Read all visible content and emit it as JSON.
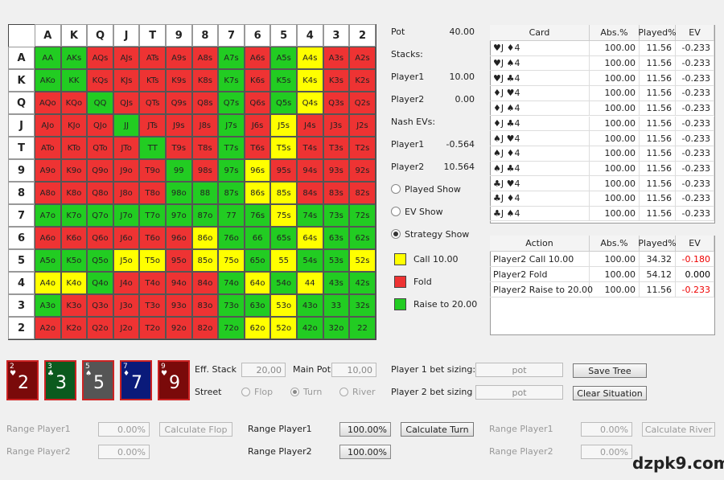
{
  "grid": {
    "columns": [
      "A",
      "K",
      "Q",
      "J",
      "T",
      "9",
      "8",
      "7",
      "6",
      "5",
      "4",
      "3",
      "2"
    ],
    "rows": [
      "A",
      "K",
      "Q",
      "J",
      "T",
      "9",
      "8",
      "7",
      "6",
      "5",
      "4",
      "3",
      "2"
    ],
    "cells": [
      [
        "AA",
        "AKs",
        "AQs",
        "AJs",
        "ATs",
        "A9s",
        "A8s",
        "A7s",
        "A6s",
        "A5s",
        "A4s",
        "A3s",
        "A2s"
      ],
      [
        "AKo",
        "KK",
        "KQs",
        "KJs",
        "KTs",
        "K9s",
        "K8s",
        "K7s",
        "K6s",
        "K5s",
        "K4s",
        "K3s",
        "K2s"
      ],
      [
        "AQo",
        "KQo",
        "QQ",
        "QJs",
        "QTs",
        "Q9s",
        "Q8s",
        "Q7s",
        "Q6s",
        "Q5s",
        "Q4s",
        "Q3s",
        "Q2s"
      ],
      [
        "AJo",
        "KJo",
        "QJo",
        "JJ",
        "JTs",
        "J9s",
        "J8s",
        "J7s",
        "J6s",
        "J5s",
        "J4s",
        "J3s",
        "J2s"
      ],
      [
        "ATo",
        "KTo",
        "QTo",
        "JTo",
        "TT",
        "T9s",
        "T8s",
        "T7s",
        "T6s",
        "T5s",
        "T4s",
        "T3s",
        "T2s"
      ],
      [
        "A9o",
        "K9o",
        "Q9o",
        "J9o",
        "T9o",
        "99",
        "98s",
        "97s",
        "96s",
        "95s",
        "94s",
        "93s",
        "92s"
      ],
      [
        "A8o",
        "K8o",
        "Q8o",
        "J8o",
        "T8o",
        "98o",
        "88",
        "87s",
        "86s",
        "85s",
        "84s",
        "83s",
        "82s"
      ],
      [
        "A7o",
        "K7o",
        "Q7o",
        "J7o",
        "T7o",
        "97o",
        "87o",
        "77",
        "76s",
        "75s",
        "74s",
        "73s",
        "72s"
      ],
      [
        "A6o",
        "K6o",
        "Q6o",
        "J6o",
        "T6o",
        "96o",
        "86o",
        "76o",
        "66",
        "65s",
        "64s",
        "63s",
        "62s"
      ],
      [
        "A5o",
        "K5o",
        "Q5o",
        "J5o",
        "T5o",
        "95o",
        "85o",
        "75o",
        "65o",
        "55",
        "54s",
        "53s",
        "52s"
      ],
      [
        "A4o",
        "K4o",
        "Q4o",
        "J4o",
        "T4o",
        "94o",
        "84o",
        "74o",
        "64o",
        "54o",
        "44",
        "43s",
        "42s"
      ],
      [
        "A3o",
        "K3o",
        "Q3o",
        "J3o",
        "T3o",
        "93o",
        "83o",
        "73o",
        "63o",
        "53o",
        "43o",
        "33",
        "32s"
      ],
      [
        "A2o",
        "K2o",
        "Q2o",
        "J2o",
        "T2o",
        "92o",
        "82o",
        "72o",
        "62o",
        "52o",
        "42o",
        "32o",
        "22"
      ]
    ],
    "colors": [
      [
        "#2c2",
        "#2c2",
        "#e33",
        "#e33",
        "#e33",
        "#e33",
        "#e33",
        "#2c2",
        "#e33",
        "#2c2",
        "#ff0",
        "#e33",
        "#e33"
      ],
      [
        "#2c2",
        "#2c2",
        "#e33",
        "#e33",
        "#e33",
        "#e33",
        "#e33",
        "#2c2",
        "#e33",
        "#2c2",
        "#ff0",
        "#e33",
        "#e33"
      ],
      [
        "#e33",
        "#e33",
        "#2c2",
        "#e33",
        "#e33",
        "#e33",
        "#e33",
        "#2c2",
        "#e33",
        "#2c2",
        "#ff0",
        "#e33",
        "#e33"
      ],
      [
        "#e33",
        "#e33",
        "#e33",
        "#2c2",
        "#e33",
        "#e33",
        "#e33",
        "#2c2",
        "#e33",
        "#ff0",
        "#e33",
        "#e33",
        "#e33"
      ],
      [
        "#e33",
        "#e33",
        "#e33",
        "#e33",
        "#2c2",
        "#e33",
        "#e33",
        "#2c2",
        "#e33",
        "#ff0",
        "#e33",
        "#e33",
        "#e33"
      ],
      [
        "#e33",
        "#e33",
        "#e33",
        "#e33",
        "#e33",
        "#2c2",
        "#e33",
        "#2c2",
        "#ff0",
        "#e33",
        "#e33",
        "#e33",
        "#e33"
      ],
      [
        "#e33",
        "#e33",
        "#e33",
        "#e33",
        "#e33",
        "#2c2",
        "#2c2",
        "#2c2",
        "#ff0",
        "#ff0",
        "#e33",
        "#e33",
        "#e33"
      ],
      [
        "#2c2",
        "#2c2",
        "#2c2",
        "#2c2",
        "#2c2",
        "#2c2",
        "#2c2",
        "#2c2",
        "#2c2",
        "#ff0",
        "#2c2",
        "#2c2",
        "#2c2"
      ],
      [
        "#e33",
        "#e33",
        "#e33",
        "#e33",
        "#e33",
        "#e33",
        "#ff0",
        "#2c2",
        "#2c2",
        "#2c2",
        "#ff0",
        "#2c2",
        "#2c2"
      ],
      [
        "#2c2",
        "#2c2",
        "#2c2",
        "#ff0",
        "#ff0",
        "#e33",
        "#ff0",
        "#ff0",
        "#2c2",
        "#ff0",
        "#2c2",
        "#2c2",
        "#ff0"
      ],
      [
        "#ff0",
        "#ff0",
        "#2c2",
        "#e33",
        "#e33",
        "#e33",
        "#e33",
        "#2c2",
        "#ff0",
        "#2c2",
        "#ff0",
        "#2c2",
        "#2c2"
      ],
      [
        "#2c2",
        "#e33",
        "#e33",
        "#e33",
        "#e33",
        "#e33",
        "#e33",
        "#2c2",
        "#2c2",
        "#ff0",
        "#2c2",
        "#2c2",
        "#2c2"
      ],
      [
        "#e33",
        "#e33",
        "#e33",
        "#e33",
        "#e33",
        "#e33",
        "#e33",
        "#2c2",
        "#ff0",
        "#ff0",
        "#2c2",
        "#2c2",
        "#2c2"
      ]
    ]
  },
  "info": [
    {
      "label": "Pot",
      "value": "40.00"
    },
    {
      "label": "Stacks:"
    },
    {
      "label": "Player1",
      "value": "10.00"
    },
    {
      "label": "Player2",
      "value": "0.00"
    },
    {
      "label": "Nash EVs:"
    },
    {
      "label": "Player1",
      "value": "-0.564"
    },
    {
      "label": "Player2",
      "value": "10.564"
    }
  ],
  "display_options": [
    {
      "label": "Played Show",
      "checked": false
    },
    {
      "label": "EV Show",
      "checked": false
    },
    {
      "label": "Strategy Show",
      "checked": true
    }
  ],
  "legend": [
    {
      "label": "Call 10.00",
      "color": "#ff0"
    },
    {
      "label": "Fold",
      "color": "#e33"
    },
    {
      "label": "Raise to 20.00",
      "color": "#2c2"
    }
  ],
  "card_table": {
    "headers": [
      "Card",
      "Abs.%",
      "Played%",
      "EV"
    ],
    "rows": [
      [
        "♥J ♦4",
        "100.00",
        "11.56",
        "-0.233"
      ],
      [
        "♥J ♠4",
        "100.00",
        "11.56",
        "-0.233"
      ],
      [
        "♥J ♣4",
        "100.00",
        "11.56",
        "-0.233"
      ],
      [
        "♦J ♥4",
        "100.00",
        "11.56",
        "-0.233"
      ],
      [
        "♦J ♠4",
        "100.00",
        "11.56",
        "-0.233"
      ],
      [
        "♦J ♣4",
        "100.00",
        "11.56",
        "-0.233"
      ],
      [
        "♠J ♥4",
        "100.00",
        "11.56",
        "-0.233"
      ],
      [
        "♠J ♦4",
        "100.00",
        "11.56",
        "-0.233"
      ],
      [
        "♠J ♣4",
        "100.00",
        "11.56",
        "-0.233"
      ],
      [
        "♣J ♥4",
        "100.00",
        "11.56",
        "-0.233"
      ],
      [
        "♣J ♦4",
        "100.00",
        "11.56",
        "-0.233"
      ],
      [
        "♣J ♠4",
        "100.00",
        "11.56",
        "-0.233"
      ]
    ]
  },
  "action_table": {
    "headers": [
      "Action",
      "Abs.%",
      "Played%",
      "EV"
    ],
    "rows": [
      [
        "Player2 Call 10.00",
        "100.00",
        "34.32",
        "-0.180"
      ],
      [
        "Player2 Fold",
        "100.00",
        "54.12",
        "0.000"
      ],
      [
        "Player2 Raise to 20.00",
        "100.00",
        "11.56",
        "-0.233"
      ]
    ],
    "ev_colors": [
      "#e00",
      "#000",
      "#e00"
    ]
  },
  "board_cards": [
    {
      "rank": "2",
      "suit": "♥",
      "color": "#7a0a0a"
    },
    {
      "rank": "3",
      "suit": "♣",
      "color": "#0b5a1e"
    },
    {
      "rank": "5",
      "suit": "♠",
      "color": "#555"
    },
    {
      "rank": "7",
      "suit": "♦",
      "color": "#0a1a7a"
    },
    {
      "rank": "9",
      "suit": "♥",
      "color": "#7a0a0a"
    }
  ],
  "controls": {
    "eff_stack": {
      "label": "Eff. Stack",
      "value": "20,00"
    },
    "main_pot": {
      "label": "Main Pot",
      "value": "10,00"
    },
    "street": {
      "label": "Street",
      "options": [
        "Flop",
        "Turn",
        "River"
      ],
      "selected": "Turn"
    }
  },
  "bet_sizing": [
    {
      "label": "Player 1 bet sizing:",
      "value": "pot"
    },
    {
      "label": "Player 2 bet sizing",
      "value": "pot"
    }
  ],
  "buttons": [
    "Save Tree",
    "Clear Situation"
  ],
  "range_groups": [
    {
      "button": "Calculate Flop",
      "enabled": false,
      "ranges": [
        {
          "label": "Range Player1",
          "value": "0.00%"
        },
        {
          "label": "Range Player2",
          "value": "0.00%"
        }
      ]
    },
    {
      "button": "Calculate Turn",
      "enabled": true,
      "ranges": [
        {
          "label": "Range Player1",
          "value": "100.00%"
        },
        {
          "label": "Range Player2",
          "value": "100.00%"
        }
      ]
    },
    {
      "button": "Calculate River",
      "enabled": false,
      "ranges": [
        {
          "label": "Range Player1",
          "value": "0.00%"
        },
        {
          "label": "Range Player2",
          "value": "0.00%"
        }
      ]
    }
  ],
  "watermark": "dzpk9.com"
}
